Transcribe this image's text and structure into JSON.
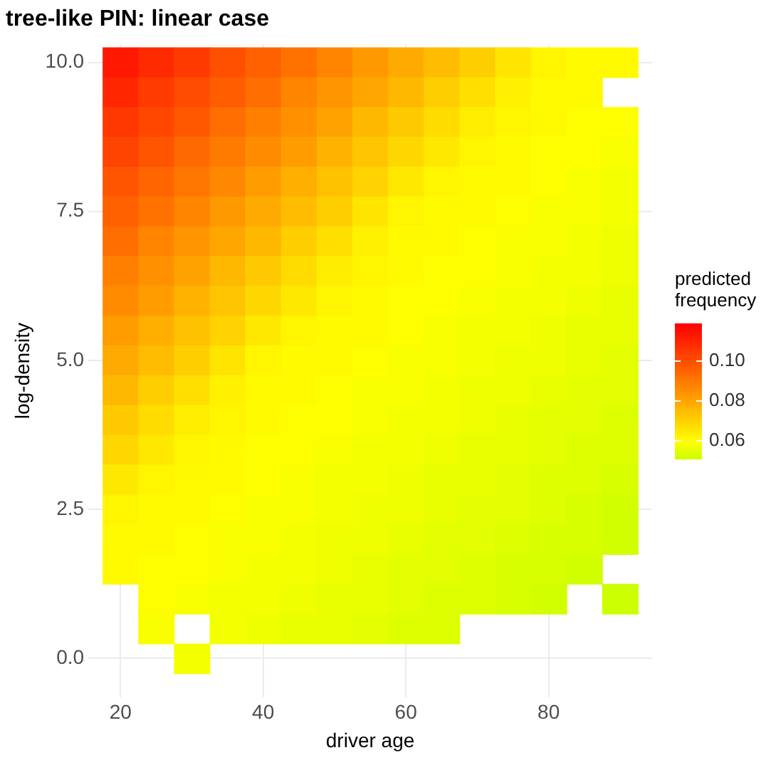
{
  "chart_data": {
    "type": "heatmap",
    "title": "tree-like PIN: linear case",
    "xlabel": "driver age",
    "ylabel": "log-density",
    "legend_title": "predicted\nfrequency",
    "grid": true,
    "categories": [
      "20",
      null,
      null,
      null,
      "40",
      null,
      null,
      null,
      "60",
      null,
      null,
      null,
      "80",
      null,
      null
    ],
    "y_categories": [
      "10.0",
      null,
      null,
      null,
      null,
      "7.5",
      null,
      null,
      null,
      null,
      "5.0",
      null,
      null,
      null,
      null,
      "2.5",
      null,
      null,
      null,
      null,
      "0.0"
    ],
    "clim": [
      0.051,
      0.119
    ],
    "cticks": [
      {
        "value": 0.06,
        "label": "0.06"
      },
      {
        "value": 0.08,
        "label": "0.08"
      },
      {
        "value": 0.1,
        "label": "0.10"
      }
    ],
    "cells": [
      [
        0.113,
        0.109,
        0.105,
        0.1,
        0.096,
        0.092,
        0.088,
        0.083,
        0.079,
        0.075,
        0.071,
        0.066,
        0.062,
        0.061,
        0.061
      ],
      [
        0.11,
        0.105,
        0.101,
        0.097,
        0.093,
        0.088,
        0.084,
        0.08,
        0.076,
        0.071,
        0.067,
        0.063,
        0.061,
        0.061,
        null
      ],
      [
        0.106,
        0.102,
        0.098,
        0.093,
        0.089,
        0.085,
        0.081,
        0.076,
        0.072,
        0.068,
        0.064,
        0.062,
        0.061,
        0.06,
        0.06
      ],
      [
        0.103,
        0.099,
        0.094,
        0.09,
        0.086,
        0.082,
        0.077,
        0.073,
        0.069,
        0.065,
        0.062,
        0.061,
        0.06,
        0.06,
        0.059
      ],
      [
        0.099,
        0.095,
        0.091,
        0.087,
        0.082,
        0.078,
        0.074,
        0.07,
        0.065,
        0.062,
        0.061,
        0.061,
        0.06,
        0.059,
        0.058
      ],
      [
        0.096,
        0.092,
        0.088,
        0.083,
        0.079,
        0.075,
        0.071,
        0.066,
        0.062,
        0.061,
        0.061,
        0.06,
        0.059,
        0.059,
        0.058
      ],
      [
        0.093,
        0.088,
        0.084,
        0.08,
        0.076,
        0.071,
        0.067,
        0.063,
        0.061,
        0.061,
        0.06,
        0.059,
        0.059,
        0.058,
        0.057
      ],
      [
        0.089,
        0.085,
        0.081,
        0.076,
        0.072,
        0.068,
        0.064,
        0.062,
        0.061,
        0.06,
        0.06,
        0.059,
        0.058,
        0.058,
        0.057
      ],
      [
        0.086,
        0.082,
        0.077,
        0.073,
        0.069,
        0.065,
        0.062,
        0.061,
        0.06,
        0.06,
        0.059,
        0.058,
        0.058,
        0.057,
        0.056
      ],
      [
        0.082,
        0.078,
        0.074,
        0.07,
        0.065,
        0.062,
        0.061,
        0.061,
        0.06,
        0.059,
        0.058,
        0.058,
        0.057,
        0.056,
        0.056
      ],
      [
        0.079,
        0.075,
        0.071,
        0.066,
        0.062,
        0.061,
        0.061,
        0.06,
        0.059,
        0.059,
        0.058,
        0.057,
        0.057,
        0.056,
        0.055
      ],
      [
        0.076,
        0.071,
        0.067,
        0.063,
        0.061,
        0.061,
        0.06,
        0.059,
        0.059,
        0.058,
        0.057,
        0.057,
        0.056,
        0.055,
        0.055
      ],
      [
        0.072,
        0.068,
        0.064,
        0.062,
        0.061,
        0.06,
        0.06,
        0.059,
        0.058,
        0.058,
        0.057,
        0.056,
        0.055,
        0.055,
        0.054
      ],
      [
        0.069,
        0.065,
        0.062,
        0.061,
        0.06,
        0.06,
        0.059,
        0.058,
        0.058,
        0.057,
        0.056,
        0.056,
        0.055,
        0.054,
        0.054
      ],
      [
        0.065,
        0.062,
        0.061,
        0.061,
        0.06,
        0.059,
        0.058,
        0.058,
        0.057,
        0.056,
        0.056,
        0.055,
        0.054,
        0.054,
        0.053
      ],
      [
        0.062,
        0.061,
        0.061,
        0.06,
        0.059,
        0.059,
        0.058,
        0.057,
        0.057,
        0.056,
        0.055,
        0.055,
        0.054,
        0.053,
        0.052
      ],
      [
        0.061,
        0.061,
        0.06,
        0.059,
        0.059,
        0.058,
        0.057,
        0.057,
        0.056,
        0.055,
        0.055,
        0.054,
        0.053,
        0.053,
        0.052
      ],
      [
        0.061,
        0.06,
        0.06,
        0.059,
        0.058,
        0.058,
        0.057,
        0.056,
        0.055,
        0.055,
        0.054,
        0.053,
        0.053,
        0.052,
        null
      ],
      [
        null,
        0.06,
        0.059,
        0.058,
        0.058,
        0.057,
        0.056,
        0.056,
        0.055,
        0.054,
        0.054,
        0.053,
        0.052,
        null,
        0.051
      ],
      [
        null,
        0.059,
        null,
        0.058,
        0.057,
        0.056,
        0.056,
        0.055,
        0.054,
        0.054,
        null,
        null,
        null,
        null,
        null
      ],
      [
        null,
        null,
        0.058,
        null,
        null,
        null,
        null,
        null,
        null,
        null,
        null,
        null,
        null,
        null,
        null
      ]
    ]
  }
}
